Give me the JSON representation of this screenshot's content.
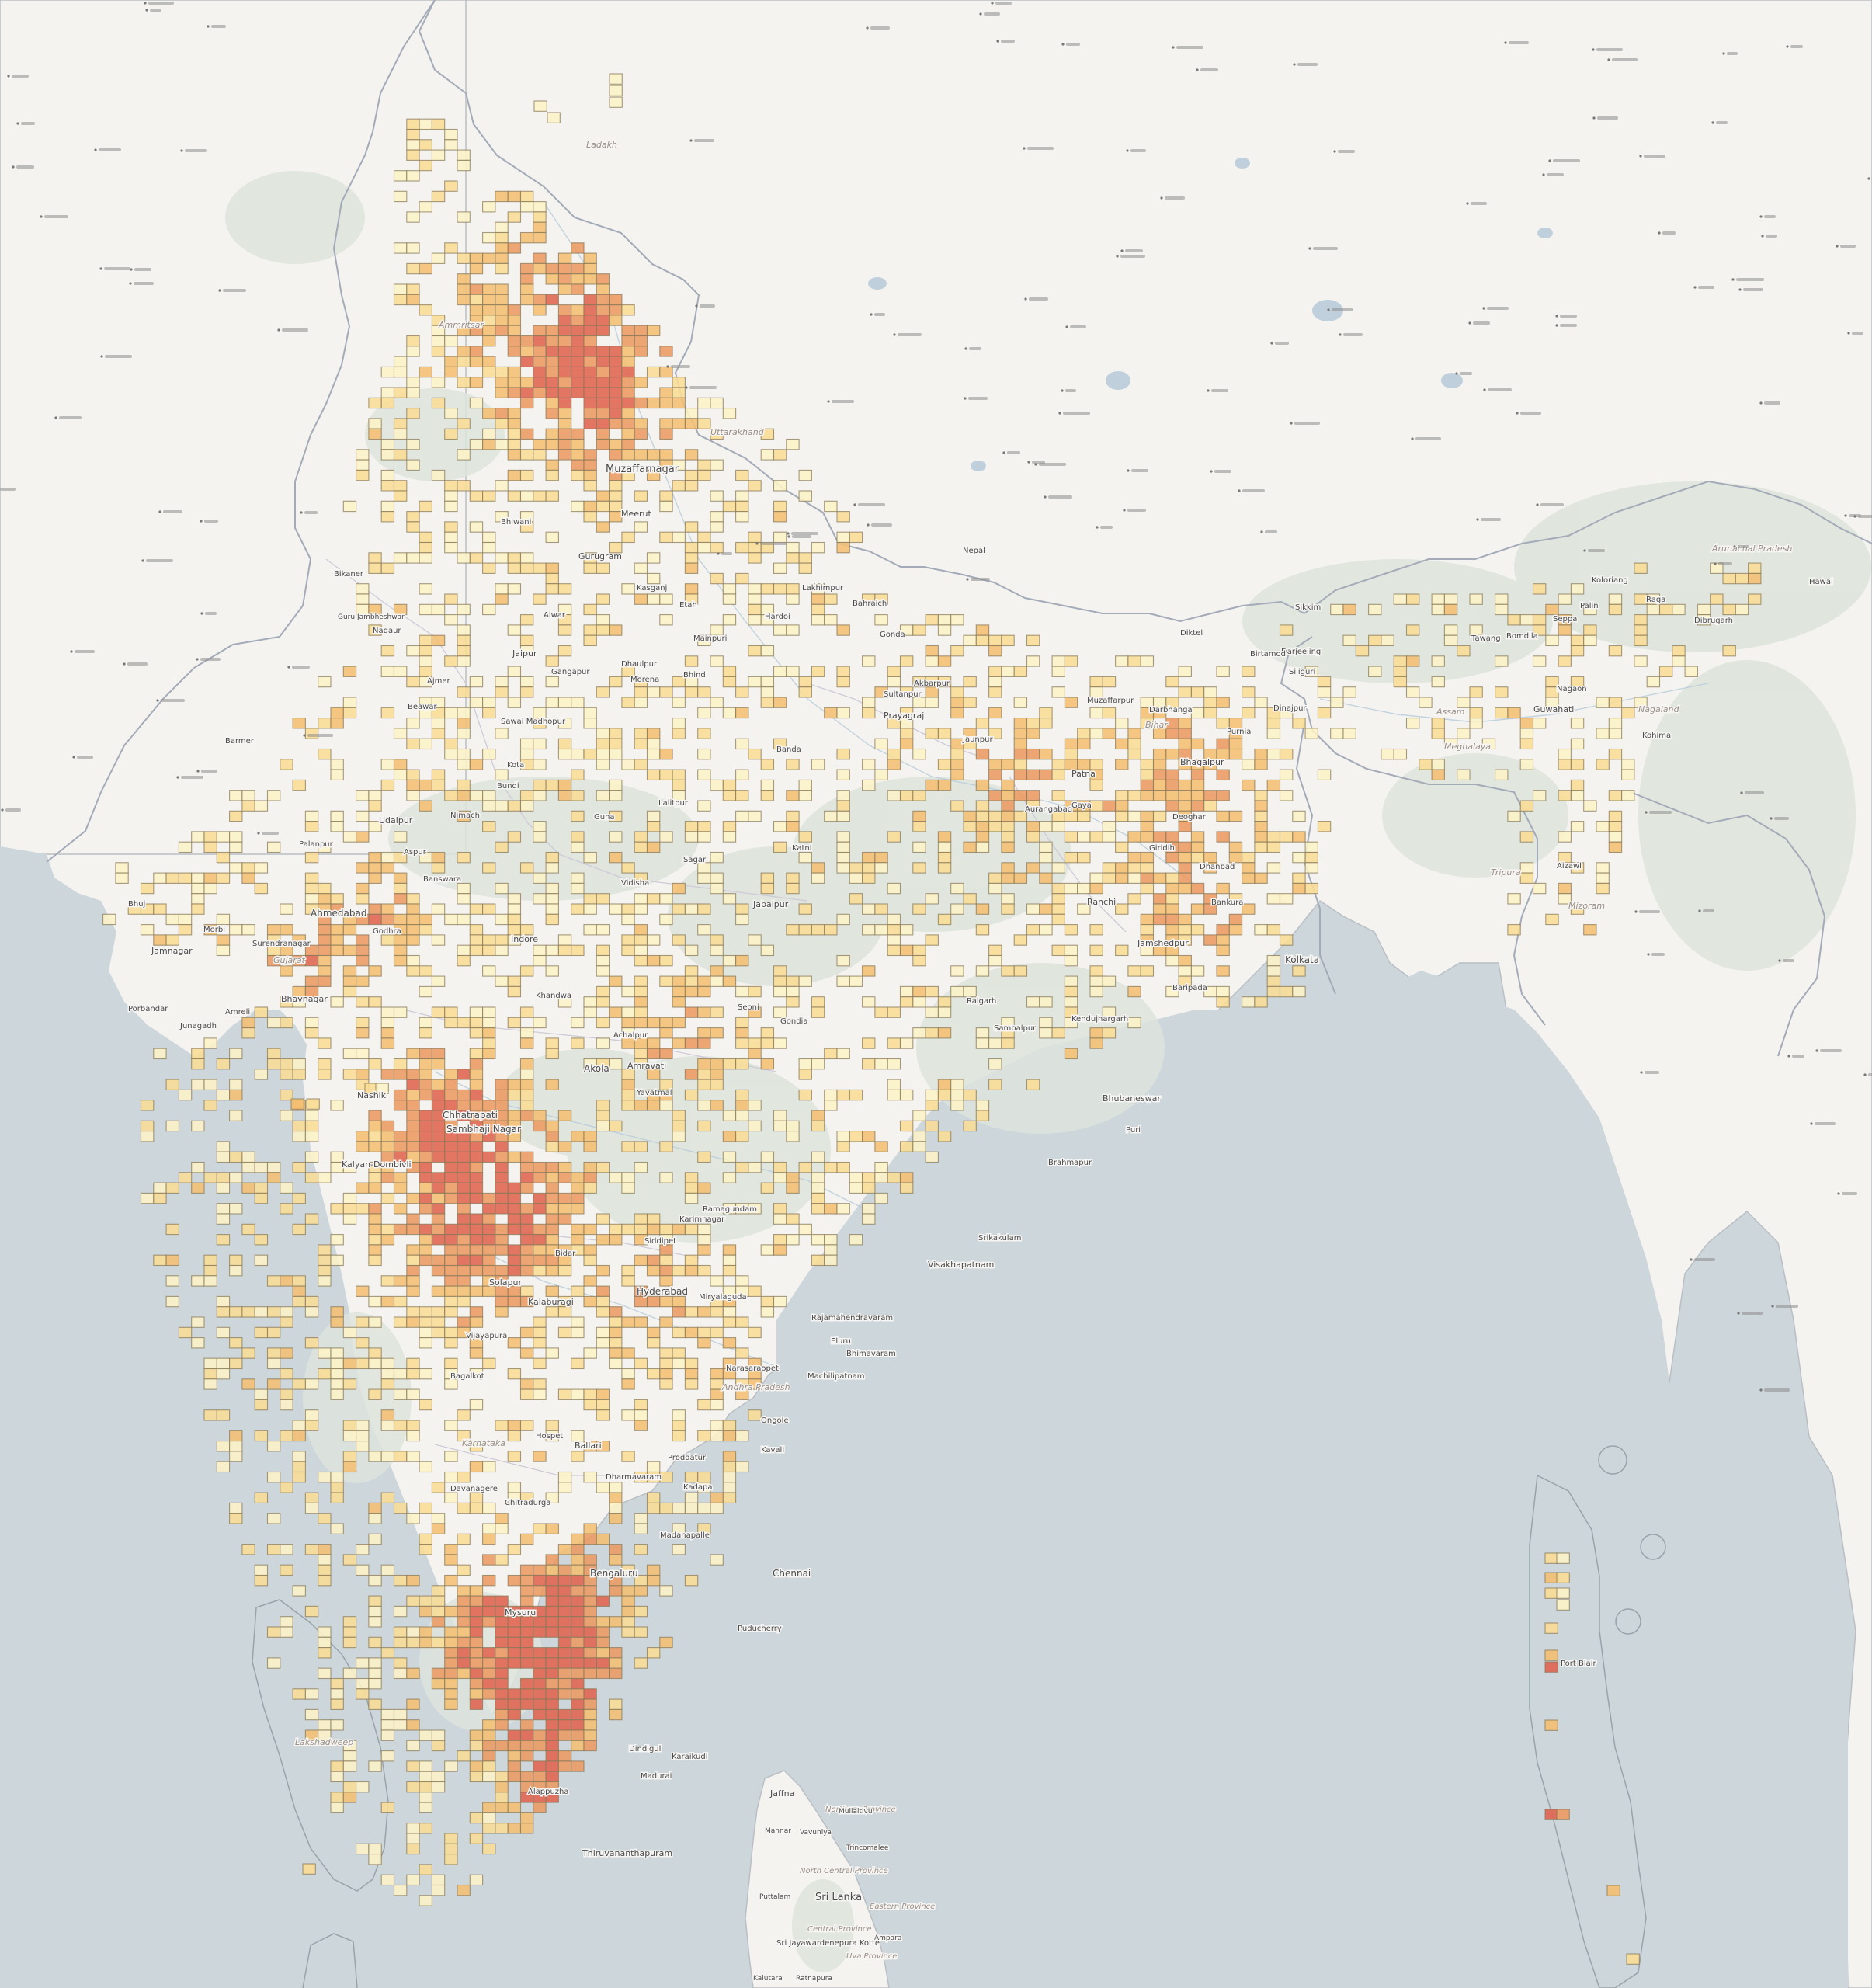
{
  "map": {
    "colors": {
      "sea": "#cdd6da",
      "land": "#f3f2ef",
      "forest": "#dfe4de",
      "border": "#9aa3ab",
      "state_border": "#c8c6cf",
      "river": "#aec6d6",
      "heat_low": "#fcefbf",
      "heat_mid": "#f4c27b",
      "heat_high": "#e45a4b"
    },
    "heat_scale": [
      "#fcf3c6",
      "#f9dd95",
      "#f4bf72",
      "#ec9a62",
      "#e0634f"
    ],
    "labels": [
      {
        "text": "Ladakh",
        "cls": "region-label",
        "size": 11
      },
      {
        "text": "Ammritsar",
        "cls": "region-label",
        "size": 11
      },
      {
        "text": "Uttarakhand",
        "cls": "region-label",
        "size": 11
      },
      {
        "text": "Muzaffarnagar",
        "cls": "place-label",
        "size": 13
      },
      {
        "text": "Meerut",
        "cls": "place-label",
        "size": 11
      },
      {
        "text": "Bhiwani",
        "cls": "place-label",
        "size": 10
      },
      {
        "text": "Gurugram",
        "cls": "place-label",
        "size": 11
      },
      {
        "text": "Alwar",
        "cls": "place-label",
        "size": 10
      },
      {
        "text": "Jaipur",
        "cls": "place-label",
        "size": 11
      },
      {
        "text": "Bikaner",
        "cls": "place-label",
        "size": 10
      },
      {
        "text": "Nagaur",
        "cls": "place-label",
        "size": 10
      },
      {
        "text": "Guru Jambheshwar",
        "cls": "place-label",
        "size": 9
      },
      {
        "text": "Ajmer",
        "cls": "place-label",
        "size": 10
      },
      {
        "text": "Barmer",
        "cls": "place-label",
        "size": 10
      },
      {
        "text": "Beawar",
        "cls": "place-label",
        "size": 10
      },
      {
        "text": "Sawai Madhopur",
        "cls": "place-label",
        "size": 10
      },
      {
        "text": "Gangapur",
        "cls": "place-label",
        "size": 10
      },
      {
        "text": "Dhaulpur",
        "cls": "place-label",
        "size": 10
      },
      {
        "text": "Morena",
        "cls": "place-label",
        "size": 10
      },
      {
        "text": "Bhind",
        "cls": "place-label",
        "size": 10
      },
      {
        "text": "Etah",
        "cls": "place-label",
        "size": 10
      },
      {
        "text": "Mainpuri",
        "cls": "place-label",
        "size": 10
      },
      {
        "text": "Kasganj",
        "cls": "place-label",
        "size": 10
      },
      {
        "text": "Hardoi",
        "cls": "place-label",
        "size": 10
      },
      {
        "text": "Lakhimpur",
        "cls": "place-label",
        "size": 10
      },
      {
        "text": "Bahraich",
        "cls": "place-label",
        "size": 10
      },
      {
        "text": "Gonda",
        "cls": "place-label",
        "size": 10
      },
      {
        "text": "Sultanpur",
        "cls": "place-label",
        "size": 10
      },
      {
        "text": "Akbarpur",
        "cls": "place-label",
        "size": 10
      },
      {
        "text": "Jaunpur",
        "cls": "place-label",
        "size": 10
      },
      {
        "text": "Prayagraj",
        "cls": "place-label",
        "size": 11
      },
      {
        "text": "Banda",
        "cls": "place-label",
        "size": 10
      },
      {
        "text": "Lalitpur",
        "cls": "place-label",
        "size": 10
      },
      {
        "text": "Guna",
        "cls": "place-label",
        "size": 10
      },
      {
        "text": "Vidisha",
        "cls": "place-label",
        "size": 10
      },
      {
        "text": "Sagar",
        "cls": "place-label",
        "size": 10
      },
      {
        "text": "Katni",
        "cls": "place-label",
        "size": 10
      },
      {
        "text": "Jabalpur",
        "cls": "place-label",
        "size": 11
      },
      {
        "text": "Indore",
        "cls": "place-label",
        "size": 11
      },
      {
        "text": "Aurangabad",
        "cls": "place-label",
        "size": 10
      },
      {
        "text": "Gaya",
        "cls": "place-label",
        "size": 10
      },
      {
        "text": "Patna",
        "cls": "place-label",
        "size": 11
      },
      {
        "text": "Bhagalpur",
        "cls": "place-label",
        "size": 11
      },
      {
        "text": "Purnia",
        "cls": "place-label",
        "size": 10
      },
      {
        "text": "Darbhanga",
        "cls": "place-label",
        "size": 10
      },
      {
        "text": "Muzaffarpur",
        "cls": "place-label",
        "size": 10
      },
      {
        "text": "Bihar",
        "cls": "region-label",
        "size": 11
      },
      {
        "text": "Deoghar",
        "cls": "place-label",
        "size": 10
      },
      {
        "text": "Giridih",
        "cls": "place-label",
        "size": 10
      },
      {
        "text": "Ranchi",
        "cls": "place-label",
        "size": 11
      },
      {
        "text": "Jamshedpur",
        "cls": "place-label",
        "size": 11
      },
      {
        "text": "Bankura",
        "cls": "place-label",
        "size": 10
      },
      {
        "text": "Kolkata",
        "cls": "place-label",
        "size": 12
      },
      {
        "text": "Baripada",
        "cls": "place-label",
        "size": 10
      },
      {
        "text": "Kendujhargarh",
        "cls": "place-label",
        "size": 10
      },
      {
        "text": "Sambalpur",
        "cls": "place-label",
        "size": 10
      },
      {
        "text": "Raigarh",
        "cls": "place-label",
        "size": 10
      },
      {
        "text": "Bhubaneswar",
        "cls": "place-label",
        "size": 11
      },
      {
        "text": "Puri",
        "cls": "place-label",
        "size": 10
      },
      {
        "text": "Brahmapur",
        "cls": "place-label",
        "size": 10
      },
      {
        "text": "Srikakulam",
        "cls": "place-label",
        "size": 10
      },
      {
        "text": "Visakhapatnam",
        "cls": "place-label",
        "size": 11
      },
      {
        "text": "Rajamahendravaram",
        "cls": "place-label",
        "size": 10
      },
      {
        "text": "Eluru",
        "cls": "place-label",
        "size": 10
      },
      {
        "text": "Bhimavaram",
        "cls": "place-label",
        "size": 10
      },
      {
        "text": "Machilipatnam",
        "cls": "place-label",
        "size": 10
      },
      {
        "text": "Narasaraopet",
        "cls": "place-label",
        "size": 10
      },
      {
        "text": "Andhra Pradesh",
        "cls": "region-label",
        "size": 11
      },
      {
        "text": "Ongole",
        "cls": "place-label",
        "size": 10
      },
      {
        "text": "Kavali",
        "cls": "place-label",
        "size": 10
      },
      {
        "text": "Proddatur",
        "cls": "place-label",
        "size": 10
      },
      {
        "text": "Kadapa",
        "cls": "place-label",
        "size": 10
      },
      {
        "text": "Dharmavaram",
        "cls": "place-label",
        "size": 10
      },
      {
        "text": "Hyderabad",
        "cls": "place-label",
        "size": 12
      },
      {
        "text": "Miryalaguda",
        "cls": "place-label",
        "size": 10
      },
      {
        "text": "Siddipet",
        "cls": "place-label",
        "size": 10
      },
      {
        "text": "Karimnagar",
        "cls": "place-label",
        "size": 10
      },
      {
        "text": "Ramagundam",
        "cls": "place-label",
        "size": 10
      },
      {
        "text": "Bidar",
        "cls": "place-label",
        "size": 10
      },
      {
        "text": "Kalaburagi",
        "cls": "place-label",
        "size": 11
      },
      {
        "text": "Solapur",
        "cls": "place-label",
        "size": 11
      },
      {
        "text": "Vijayapura",
        "cls": "place-label",
        "size": 10
      },
      {
        "text": "Bagalkot",
        "cls": "place-label",
        "size": 10
      },
      {
        "text": "Hospet",
        "cls": "place-label",
        "size": 10
      },
      {
        "text": "Ballari",
        "cls": "place-label",
        "size": 11
      },
      {
        "text": "Davanagere",
        "cls": "place-label",
        "size": 10
      },
      {
        "text": "Chitradurga",
        "cls": "place-label",
        "size": 10
      },
      {
        "text": "Karnataka",
        "cls": "region-label",
        "size": 11
      },
      {
        "text": "Madanapalle",
        "cls": "place-label",
        "size": 10
      },
      {
        "text": "Bengaluru",
        "cls": "place-label",
        "size": 12
      },
      {
        "text": "Mysuru",
        "cls": "place-label",
        "size": 11
      },
      {
        "text": "Chennai",
        "cls": "place-label",
        "size": 12
      },
      {
        "text": "Puducherry",
        "cls": "place-label",
        "size": 10
      },
      {
        "text": "Dindigul",
        "cls": "place-label",
        "size": 10
      },
      {
        "text": "Karaikudi",
        "cls": "place-label",
        "size": 10
      },
      {
        "text": "Madurai",
        "cls": "place-label",
        "size": 10
      },
      {
        "text": "Alappuzha",
        "cls": "place-label",
        "size": 10
      },
      {
        "text": "Thiruvananthapuram",
        "cls": "place-label",
        "size": 11
      },
      {
        "text": "Lakshadweep",
        "cls": "region-label",
        "size": 11
      },
      {
        "text": "Chhatrapati",
        "cls": "place-label",
        "size": 12
      },
      {
        "text": "Sambhaji Nagar",
        "cls": "place-label",
        "size": 12
      },
      {
        "text": "Akola",
        "cls": "place-label",
        "size": 12
      },
      {
        "text": "Amravati",
        "cls": "place-label",
        "size": 11
      },
      {
        "text": "Yavatmal",
        "cls": "place-label",
        "size": 10
      },
      {
        "text": "Achalpur",
        "cls": "place-label",
        "size": 10
      },
      {
        "text": "Gondia",
        "cls": "place-label",
        "size": 10
      },
      {
        "text": "Seoni",
        "cls": "place-label",
        "size": 10
      },
      {
        "text": "Nashik",
        "cls": "place-label",
        "size": 11
      },
      {
        "text": "Kalyan-Dombivli",
        "cls": "place-label",
        "size": 11
      },
      {
        "text": "Khandwa",
        "cls": "place-label",
        "size": 10
      },
      {
        "text": "Ahmedabad",
        "cls": "place-label",
        "size": 12
      },
      {
        "text": "Gujarat",
        "cls": "region-label",
        "size": 11
      },
      {
        "text": "Jamnagar",
        "cls": "place-label",
        "size": 11
      },
      {
        "text": "Surendranagar",
        "cls": "place-label",
        "size": 10
      },
      {
        "text": "Morbi",
        "cls": "place-label",
        "size": 10
      },
      {
        "text": "Bhuj",
        "cls": "place-label",
        "size": 10
      },
      {
        "text": "Porbandar",
        "cls": "place-label",
        "size": 10
      },
      {
        "text": "Junagadh",
        "cls": "place-label",
        "size": 10
      },
      {
        "text": "Amreli",
        "cls": "place-label",
        "size": 10
      },
      {
        "text": "Bhavnagar",
        "cls": "place-label",
        "size": 11
      },
      {
        "text": "Godhra",
        "cls": "place-label",
        "size": 10
      },
      {
        "text": "Banswara",
        "cls": "place-label",
        "size": 10
      },
      {
        "text": "Aspur",
        "cls": "place-label",
        "size": 10
      },
      {
        "text": "Udaipur",
        "cls": "place-label",
        "size": 11
      },
      {
        "text": "Bundi",
        "cls": "place-label",
        "size": 10
      },
      {
        "text": "Kota",
        "cls": "place-label",
        "size": 10
      },
      {
        "text": "Nimach",
        "cls": "place-label",
        "size": 10
      },
      {
        "text": "Palanpur",
        "cls": "place-label",
        "size": 10
      },
      {
        "text": "Kolkata",
        "cls": "place-label",
        "size": 12
      },
      {
        "text": "Sri Lanka",
        "cls": "place-label",
        "size": 13
      },
      {
        "text": "Jaffna",
        "cls": "place-label",
        "size": 11
      },
      {
        "text": "Northern Province",
        "cls": "region-label",
        "size": 10
      },
      {
        "text": "Mullaitivu",
        "cls": "place-label",
        "size": 9
      },
      {
        "text": "Mannar",
        "cls": "place-label",
        "size": 9
      },
      {
        "text": "Vavuniya",
        "cls": "place-label",
        "size": 9
      },
      {
        "text": "Trincomalee",
        "cls": "place-label",
        "size": 9
      },
      {
        "text": "North Central Province",
        "cls": "region-label",
        "size": 10
      },
      {
        "text": "Puttalam",
        "cls": "place-label",
        "size": 9
      },
      {
        "text": "Eastern Province",
        "cls": "region-label",
        "size": 10
      },
      {
        "text": "Central Province",
        "cls": "region-label",
        "size": 10
      },
      {
        "text": "Ampara",
        "cls": "place-label",
        "size": 9
      },
      {
        "text": "Sri Jayawardenepura Kotte",
        "cls": "place-label",
        "size": 10
      },
      {
        "text": "Kalutara",
        "cls": "place-label",
        "size": 9
      },
      {
        "text": "Ratnapura",
        "cls": "place-label",
        "size": 9
      },
      {
        "text": "Uva Province",
        "cls": "region-label",
        "size": 10
      },
      {
        "text": "Sikkim",
        "cls": "place-label",
        "size": 10
      },
      {
        "text": "Darjeeling",
        "cls": "place-label",
        "size": 10
      },
      {
        "text": "Siliguri",
        "cls": "place-label",
        "size": 10
      },
      {
        "text": "Guwahati",
        "cls": "place-label",
        "size": 11
      },
      {
        "text": "Assam",
        "cls": "region-label",
        "size": 11
      },
      {
        "text": "Meghalaya",
        "cls": "region-label",
        "size": 11
      },
      {
        "text": "Nagaon",
        "cls": "place-label",
        "size": 10
      },
      {
        "text": "Nagaland",
        "cls": "region-label",
        "size": 11
      },
      {
        "text": "Kohima",
        "cls": "place-label",
        "size": 10
      },
      {
        "text": "Dibrugarh",
        "cls": "place-label",
        "size": 10
      },
      {
        "text": "Arunachal Pradesh",
        "cls": "region-label",
        "size": 11
      },
      {
        "text": "Bomdila",
        "cls": "place-label",
        "size": 10
      },
      {
        "text": "Tawang",
        "cls": "place-label",
        "size": 10
      },
      {
        "text": "Koloriang",
        "cls": "place-label",
        "size": 10
      },
      {
        "text": "Raga",
        "cls": "place-label",
        "size": 10
      },
      {
        "text": "Hawai",
        "cls": "place-label",
        "size": 10
      },
      {
        "text": "Seppa",
        "cls": "place-label",
        "size": 10
      },
      {
        "text": "Palin",
        "cls": "place-label",
        "size": 10
      },
      {
        "text": "Tripura",
        "cls": "region-label",
        "size": 11
      },
      {
        "text": "Mizoram",
        "cls": "region-label",
        "size": 11
      },
      {
        "text": "Aizawl",
        "cls": "place-label",
        "size": 10
      },
      {
        "text": "Dinajpur",
        "cls": "place-label",
        "size": 10
      },
      {
        "text": "Dhanbad",
        "cls": "place-label",
        "size": 10
      },
      {
        "text": "Nepal",
        "cls": "place-label",
        "size": 10
      },
      {
        "text": "Diktel",
        "cls": "place-label",
        "size": 10
      },
      {
        "text": "Birtamod",
        "cls": "place-label",
        "size": 10
      },
      {
        "text": "Port Blair",
        "cls": "place-label",
        "size": 10
      }
    ]
  }
}
